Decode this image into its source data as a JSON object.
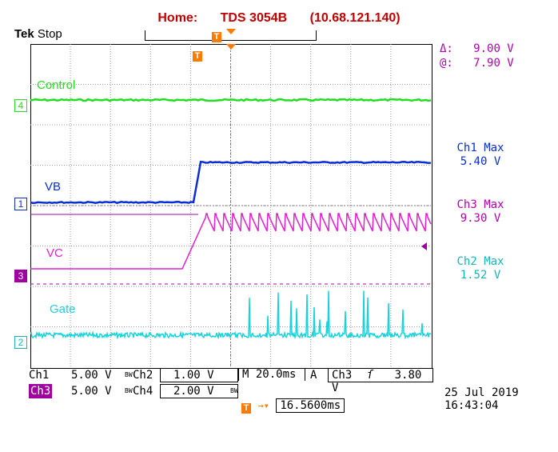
{
  "title": {
    "home": "Home:",
    "model": "TDS 3054B",
    "ip": "(10.68.121.140)"
  },
  "brand": {
    "tek": "Tek",
    "state": "Stop"
  },
  "traces": {
    "ch4": {
      "label": "Control",
      "marker": "4",
      "color": "#22dd22"
    },
    "ch1": {
      "label": "VB",
      "marker": "1",
      "color": "#0a2ed2"
    },
    "ch3": {
      "label": "VC",
      "marker": "3",
      "color": "#e020d0"
    },
    "ch2": {
      "label": "Gate",
      "marker": "2",
      "color": "#19d3dc"
    }
  },
  "trigger_marker": "T",
  "cursor": {
    "delta_label": "Δ:",
    "delta_value": "9.00 V",
    "at_label": "@:",
    "at_value": "7.90 V",
    "color": "#b000b0"
  },
  "measurements": [
    {
      "name": "Ch1 Max",
      "value": "5.40 V",
      "color": "#0a2ed2"
    },
    {
      "name": "Ch3 Max",
      "value": "9.30 V",
      "color": "#b000b0"
    },
    {
      "name": "Ch2 Max",
      "value": "1.52 V",
      "color": "#19b5bc"
    }
  ],
  "status": {
    "ch1": {
      "name": "Ch1",
      "scale": "5.00 V"
    },
    "ch2": {
      "name": "Ch2",
      "scale": "1.00 V"
    },
    "ch3": {
      "name": "Ch3",
      "scale": "5.00 V"
    },
    "ch4": {
      "name": "Ch4",
      "scale": "2.00 V"
    },
    "bw": "BW",
    "timebase": "M 20.0ms",
    "trigger_mode": "A",
    "trigger_source": "Ch3",
    "trigger_slope": "ſ",
    "trigger_level": "3.80 V",
    "trigger_pos": "16.5600ms"
  },
  "datetime": {
    "date": "25 Jul  2019",
    "time": "16:43:04"
  }
}
